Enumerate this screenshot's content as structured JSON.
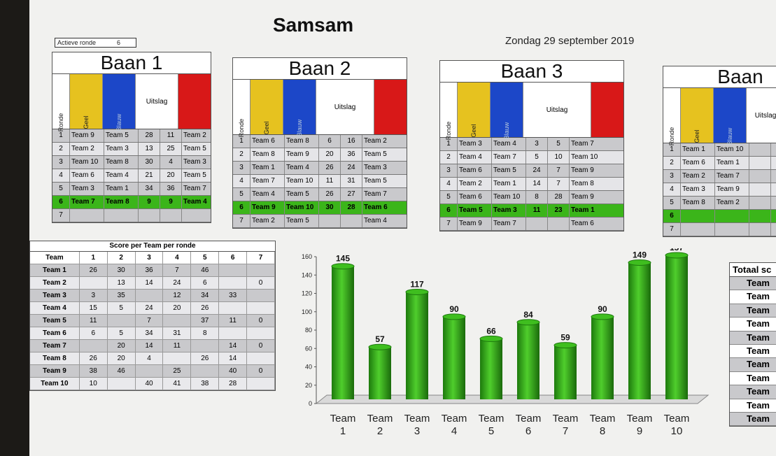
{
  "app": {
    "title": "Samsam",
    "date": "Zondag 29 september 2019",
    "active_round_label": "Actieve ronde",
    "active_round_value": "6"
  },
  "colors": {
    "yellow": "#e6c21f",
    "blue": "#1c47c8",
    "red": "#d81818",
    "active_row": "#3bb51a",
    "bar": "#2a9a12"
  },
  "baan_headers": {
    "ronde": "Ronde",
    "geel": "Geel",
    "blauw": "Blauw",
    "uitslag": "Uitslag"
  },
  "banen": [
    {
      "title": "Baan 1",
      "rows": [
        [
          "1",
          "Team 9",
          "Team 5",
          "28",
          "11",
          "Team 2"
        ],
        [
          "2",
          "Team 2",
          "Team 3",
          "13",
          "25",
          "Team 5"
        ],
        [
          "3",
          "Team 10",
          "Team 8",
          "30",
          "4",
          "Team 3"
        ],
        [
          "4",
          "Team 6",
          "Team 4",
          "21",
          "20",
          "Team 5"
        ],
        [
          "5",
          "Team 3",
          "Team 1",
          "34",
          "36",
          "Team 7"
        ],
        [
          "6",
          "Team 7",
          "Team 8",
          "9",
          "9",
          "Team 4"
        ],
        [
          "7",
          "",
          "",
          "",
          "",
          ""
        ]
      ]
    },
    {
      "title": "Baan 2",
      "rows": [
        [
          "1",
          "Team 6",
          "Team 8",
          "6",
          "16",
          "Team 2"
        ],
        [
          "2",
          "Team 8",
          "Team 9",
          "20",
          "36",
          "Team 5"
        ],
        [
          "3",
          "Team 1",
          "Team 4",
          "26",
          "24",
          "Team 3"
        ],
        [
          "4",
          "Team 7",
          "Team 10",
          "11",
          "31",
          "Team 5"
        ],
        [
          "5",
          "Team 4",
          "Team 5",
          "26",
          "27",
          "Team 7"
        ],
        [
          "6",
          "Team 9",
          "Team 10",
          "30",
          "28",
          "Team 6"
        ],
        [
          "7",
          "Team 2",
          "Team 5",
          "",
          "",
          "Team 4"
        ]
      ]
    },
    {
      "title": "Baan 3",
      "rows": [
        [
          "1",
          "Team 3",
          "Team 4",
          "3",
          "5",
          "Team 7"
        ],
        [
          "2",
          "Team 4",
          "Team 7",
          "5",
          "10",
          "Team 10"
        ],
        [
          "3",
          "Team 6",
          "Team 5",
          "24",
          "7",
          "Team 9"
        ],
        [
          "4",
          "Team 2",
          "Team 1",
          "14",
          "7",
          "Team 8"
        ],
        [
          "5",
          "Team 6",
          "Team 10",
          "8",
          "28",
          "Team 9"
        ],
        [
          "6",
          "Team 5",
          "Team 3",
          "11",
          "23",
          "Team 1"
        ],
        [
          "7",
          "Team 9",
          "Team 7",
          "",
          "",
          "Team 6"
        ]
      ]
    },
    {
      "title": "Baan",
      "rows": [
        [
          "1",
          "Team 1",
          "Team 10",
          "",
          ""
        ],
        [
          "2",
          "Team 6",
          "Team 1",
          "",
          ""
        ],
        [
          "3",
          "Team 2",
          "Team 7",
          "",
          ""
        ],
        [
          "4",
          "Team 3",
          "Team 9",
          "",
          ""
        ],
        [
          "5",
          "Team 8",
          "Team 2",
          "",
          ""
        ],
        [
          "6",
          "",
          "",
          "",
          ""
        ],
        [
          "7",
          "",
          "",
          "",
          ""
        ]
      ]
    }
  ],
  "score_table": {
    "caption": "Score per Team per ronde",
    "headers": [
      "Team",
      "1",
      "2",
      "3",
      "4",
      "5",
      "6",
      "7"
    ],
    "rows": [
      [
        "Team 1",
        "26",
        "30",
        "36",
        "7",
        "46",
        "",
        ""
      ],
      [
        "Team 2",
        "",
        "13",
        "14",
        "24",
        "6",
        "",
        "0"
      ],
      [
        "Team 3",
        "3",
        "35",
        "",
        "12",
        "34",
        "33",
        ""
      ],
      [
        "Team 4",
        "15",
        "5",
        "24",
        "20",
        "26",
        "",
        ""
      ],
      [
        "Team 5",
        "11",
        "",
        "7",
        "",
        "37",
        "11",
        "0"
      ],
      [
        "Team 6",
        "6",
        "5",
        "34",
        "31",
        "8",
        "",
        ""
      ],
      [
        "Team 7",
        "",
        "20",
        "14",
        "11",
        "",
        "14",
        "0"
      ],
      [
        "Team 8",
        "26",
        "20",
        "4",
        "",
        "26",
        "14",
        ""
      ],
      [
        "Team 9",
        "38",
        "46",
        "",
        "25",
        "",
        "40",
        "0"
      ],
      [
        "Team 10",
        "10",
        "",
        "40",
        "41",
        "38",
        "28",
        ""
      ]
    ]
  },
  "chart_data": {
    "type": "bar",
    "categories": [
      "Team 1",
      "Team 2",
      "Team 3",
      "Team 4",
      "Team 5",
      "Team 6",
      "Team 7",
      "Team 8",
      "Team 9",
      "Team 10"
    ],
    "values": [
      145,
      57,
      117,
      90,
      66,
      84,
      59,
      90,
      149,
      157
    ],
    "ylim": [
      0,
      160
    ],
    "yticks": [
      "0",
      "20",
      "40",
      "60",
      "80",
      "100",
      "120",
      "140",
      "160"
    ],
    "grid": false,
    "bar_style": "3d-cylinder"
  },
  "totaal": {
    "header": "Totaal sc",
    "rows": [
      "Team",
      "Team",
      "Team",
      "Team",
      "Team",
      "Team",
      "Team",
      "Team",
      "Team",
      "Team",
      "Team"
    ]
  }
}
